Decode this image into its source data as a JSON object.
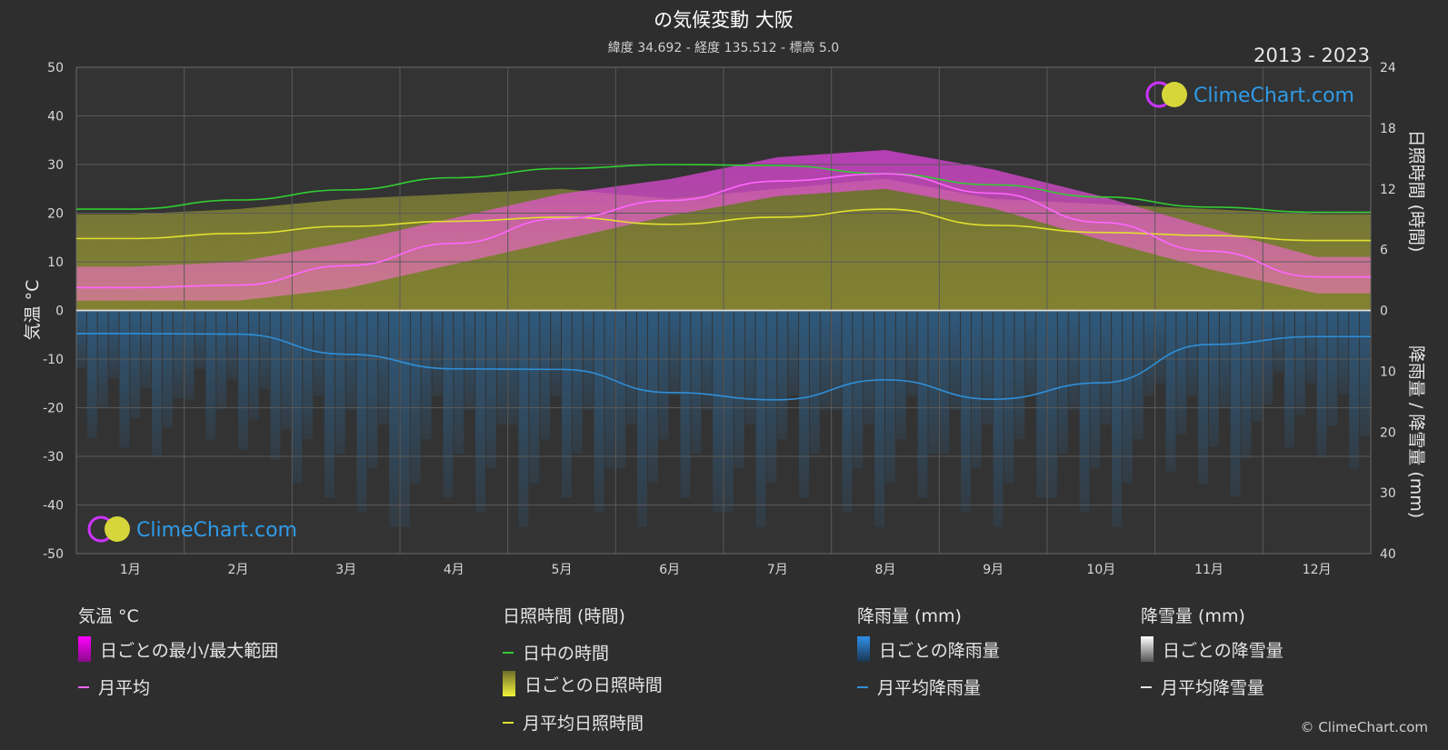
{
  "header": {
    "title": "の気候変動 大阪",
    "subtitle": "緯度 34.692 - 経度 135.512 - 標高 5.0",
    "years": "2013 - 2023",
    "watermark": "ClimeChart.com"
  },
  "axes": {
    "left_label": "気温 °C",
    "right_top_label": "日照時間 (時間)",
    "right_bottom_label": "降雨量 / 降雪量 (mm)",
    "left_ticks": [
      "50",
      "40",
      "30",
      "20",
      "10",
      "0",
      "-10",
      "-20",
      "-30",
      "-40",
      "-50"
    ],
    "right_top_ticks": [
      "24",
      "18",
      "12",
      "6",
      "0"
    ],
    "right_bottom_ticks": [
      "10",
      "20",
      "30",
      "40"
    ]
  },
  "chart_data": {
    "type": "line",
    "title": "の気候変動 大阪",
    "categories": [
      "1月",
      "2月",
      "3月",
      "4月",
      "5月",
      "6月",
      "7月",
      "8月",
      "9月",
      "10月",
      "11月",
      "12月"
    ],
    "temp_ylim": [
      -50,
      50
    ],
    "sunshine_ylim": [
      0,
      24
    ],
    "precip_ylim": [
      0,
      40
    ],
    "grid": true,
    "series": [
      {
        "name": "日中の時間",
        "axis": "sunshine_hours",
        "color": "#33cc33",
        "values": [
          10.0,
          10.9,
          11.9,
          13.1,
          14.0,
          14.4,
          14.3,
          13.5,
          12.4,
          11.2,
          10.2,
          9.7
        ]
      },
      {
        "name": "月平均日照時間",
        "axis": "sunshine_hours",
        "color": "#e0e030",
        "values": [
          7.1,
          7.6,
          8.3,
          8.8,
          9.2,
          8.5,
          9.2,
          10.0,
          8.4,
          7.7,
          7.4,
          6.9
        ]
      },
      {
        "name": "月平均",
        "axis": "temperature",
        "color": "#ff66ff",
        "values": [
          4.7,
          5.2,
          9.2,
          13.8,
          18.9,
          22.6,
          26.6,
          28.1,
          24.1,
          18.1,
          12.2,
          6.9
        ]
      },
      {
        "name": "月平均降雨量",
        "axis": "precipitation_mm",
        "color": "#2f8fd8",
        "values": [
          3.8,
          3.9,
          7.2,
          9.6,
          9.7,
          13.5,
          14.7,
          11.4,
          14.6,
          11.9,
          5.6,
          4.3
        ]
      },
      {
        "name": "月平均降雪量",
        "axis": "precipitation_mm",
        "color": "#e6e6e6",
        "values": [
          0.0,
          0.0,
          0.0,
          0.0,
          0.0,
          0.0,
          0.0,
          0.0,
          0.0,
          0.0,
          0.0,
          0.0
        ]
      }
    ],
    "daily_temp_range": {
      "name": "日ごとの最小/最大範囲",
      "min": [
        2.0,
        2.0,
        4.5,
        9.5,
        14.5,
        19.5,
        23.5,
        25.0,
        21.0,
        14.5,
        8.5,
        3.5
      ],
      "max": [
        9.0,
        10.0,
        14.0,
        19.0,
        24.0,
        27.0,
        31.5,
        33.0,
        29.0,
        23.5,
        17.0,
        11.0
      ]
    },
    "daily_sunshine": {
      "name": "日ごとの日照時間",
      "values": [
        7.0,
        7.5,
        8.5,
        9.0,
        9.5,
        8.5,
        9.5,
        10.5,
        8.5,
        8.0,
        7.5,
        7.0
      ]
    }
  },
  "legend": {
    "temperature": {
      "title": "気温 °C",
      "items": [
        "日ごとの最小/最大範囲",
        "月平均"
      ]
    },
    "sunshine": {
      "title": "日照時間 (時間)",
      "items": [
        "日中の時間",
        "日ごとの日照時間",
        "月平均日照時間"
      ]
    },
    "rain": {
      "title": "降雨量 (mm)",
      "items": [
        "日ごとの降雨量",
        "月平均降雨量"
      ]
    },
    "snow": {
      "title": "降雪量 (mm)",
      "items": [
        "日ごとの降雪量",
        "月平均降雪量"
      ]
    }
  },
  "footer": {
    "copyright": "© ClimeChart.com"
  }
}
